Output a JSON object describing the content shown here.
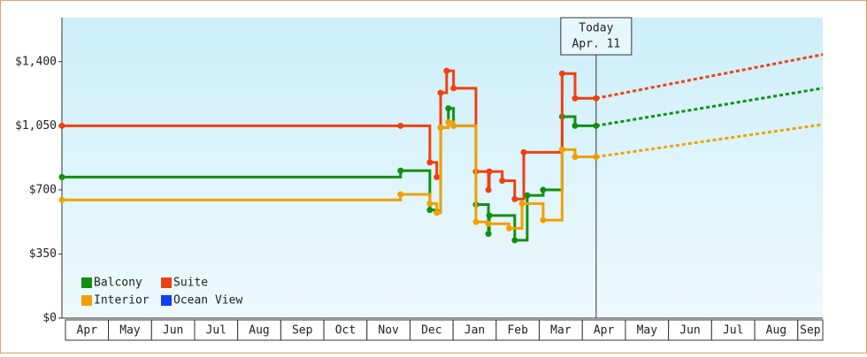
{
  "chart_data": {
    "type": "step",
    "xlim": [
      -0.08,
      17.58
    ],
    "xticks": [
      {
        "value": 0.5,
        "label": "Apr"
      },
      {
        "value": 1.5,
        "label": "May"
      },
      {
        "value": 2.5,
        "label": "Jun"
      },
      {
        "value": 3.5,
        "label": "Jul"
      },
      {
        "value": 4.5,
        "label": "Aug"
      },
      {
        "value": 5.5,
        "label": "Sep"
      },
      {
        "value": 6.5,
        "label": "Oct"
      },
      {
        "value": 7.5,
        "label": "Nov"
      },
      {
        "value": 8.5,
        "label": "Dec"
      },
      {
        "value": 9.5,
        "label": "Jan"
      },
      {
        "value": 10.5,
        "label": "Feb"
      },
      {
        "value": 11.5,
        "label": "Mar"
      },
      {
        "value": 12.5,
        "label": "Apr"
      },
      {
        "value": 13.5,
        "label": "May"
      },
      {
        "value": 14.5,
        "label": "Jun"
      },
      {
        "value": 15.5,
        "label": "Jul"
      },
      {
        "value": 16.5,
        "label": "Aug"
      },
      {
        "value": 17.5,
        "label": "Sep"
      }
    ],
    "ylim": [
      0,
      1640
    ],
    "yticks": [
      {
        "value": 0,
        "label": "$0"
      },
      {
        "value": 350,
        "label": "$350"
      },
      {
        "value": 700,
        "label": "$700"
      },
      {
        "value": 1050,
        "label": "$1,050"
      },
      {
        "value": 1400,
        "label": "$1,400"
      }
    ],
    "today": {
      "x": 12.32,
      "label": [
        "Today",
        "Apr. 11"
      ]
    },
    "legend": "bottom-left",
    "series": [
      {
        "name": "Balcony",
        "color": "#109010",
        "x": [
          -0.08,
          7.78,
          8.46,
          8.62,
          8.71,
          8.89,
          9.01,
          9.53,
          9.82,
          9.84,
          10.43,
          10.72,
          11.09,
          11.53,
          11.83,
          12.32
        ],
        "values": [
          770,
          805,
          590,
          580,
          1040,
          1145,
          1050,
          620,
          460,
          560,
          425,
          670,
          700,
          1100,
          1050,
          1050
        ],
        "forecast_x": [
          12.32,
          17.58
        ],
        "forecast_values": [
          1050,
          1255
        ]
      },
      {
        "name": "Suite",
        "color": "#f04010",
        "x": [
          -0.08,
          7.78,
          8.46,
          8.62,
          8.71,
          8.85,
          9.01,
          9.53,
          9.82,
          9.84,
          10.14,
          10.43,
          10.64,
          11.53,
          11.83,
          12.32
        ],
        "values": [
          1050,
          1050,
          850,
          770,
          1230,
          1350,
          1255,
          800,
          700,
          800,
          750,
          650,
          905,
          1335,
          1200,
          1200
        ],
        "forecast_x": [
          12.32,
          17.58
        ],
        "forecast_values": [
          1200,
          1439
        ]
      },
      {
        "name": "Interior",
        "color": "#f0a000",
        "x": [
          -0.08,
          7.78,
          8.46,
          8.62,
          8.71,
          8.89,
          9.01,
          9.53,
          9.82,
          10.3,
          10.6,
          11.09,
          11.53,
          11.83,
          12.32
        ],
        "values": [
          645,
          675,
          625,
          575,
          1040,
          1070,
          1050,
          525,
          515,
          490,
          625,
          535,
          920,
          880,
          880
        ],
        "forecast_x": [
          12.32,
          17.58
        ],
        "forecast_values": [
          880,
          1057
        ]
      },
      {
        "name": "Ocean View",
        "color": "#1040f0",
        "x": [],
        "values": [],
        "forecast_x": [],
        "forecast_values": []
      }
    ]
  }
}
